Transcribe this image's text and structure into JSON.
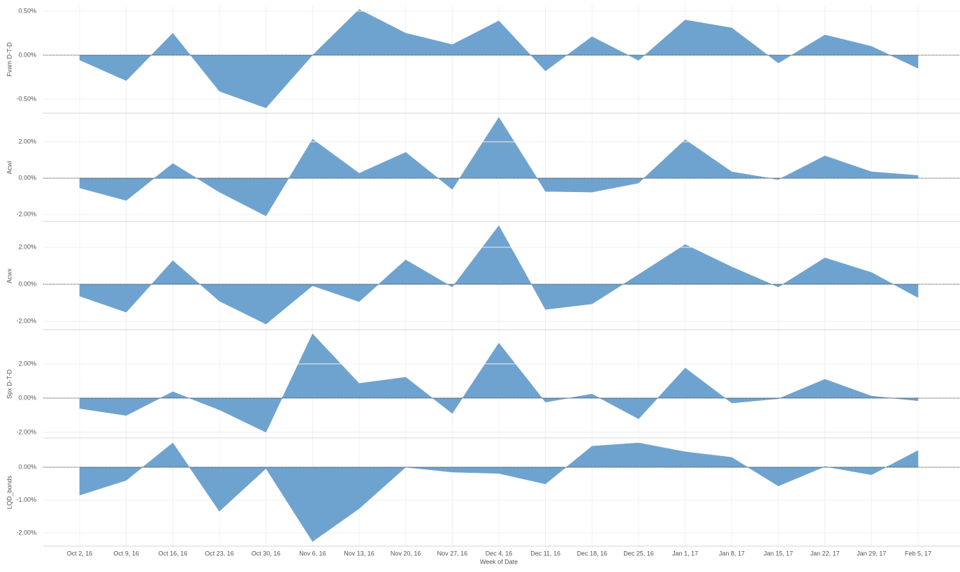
{
  "chart_data": {
    "type": "area",
    "xlabel": "Week of Date",
    "categories": [
      "Oct 2, 16",
      "Oct 9, 16",
      "Oct 16, 16",
      "Oct 23, 16",
      "Oct 30, 16",
      "Nov 6, 16",
      "Nov 13, 16",
      "Nov 20, 16",
      "Nov 27, 16",
      "Dec 4, 16",
      "Dec 11, 16",
      "Dec 18, 16",
      "Dec 25, 16",
      "Jan 1, 17",
      "Jan 8, 17",
      "Jan 15, 17",
      "Jan 22, 17",
      "Jan 29, 17",
      "Feb 5, 17"
    ],
    "color": "#6fa3cf",
    "grid": true,
    "series": [
      {
        "name": "Fvam D-T-D",
        "ylim": [
          -0.659,
          0.563
        ],
        "yticks": [
          {
            "value": -0.5,
            "label": "-0.50%"
          },
          {
            "value": 0,
            "label": "0.00%"
          },
          {
            "value": 0.5,
            "label": "0.50%"
          }
        ],
        "values": [
          -0.056,
          -0.29,
          0.25,
          -0.41,
          -0.6,
          0,
          0.52,
          0.25,
          0.12,
          0.39,
          -0.18,
          0.21,
          -0.06,
          0.4,
          0.31,
          -0.09,
          0.23,
          0.1,
          -0.15
        ]
      },
      {
        "name": "Acwi",
        "ylim": [
          -2.38,
          3.54
        ],
        "yticks": [
          {
            "value": -2,
            "label": "-2.00%"
          },
          {
            "value": 0,
            "label": "0.00%"
          },
          {
            "value": 2,
            "label": "2.00%"
          }
        ],
        "values": [
          -0.54,
          -1.23,
          0.81,
          -0.77,
          -2.08,
          2.15,
          0.27,
          1.42,
          -0.62,
          3.35,
          -0.73,
          -0.77,
          -0.27,
          2.12,
          0.35,
          -0.08,
          1.23,
          0.35,
          0.15
        ]
      },
      {
        "name": "Acwx",
        "ylim": [
          -2.45,
          3.36
        ],
        "yticks": [
          {
            "value": -2,
            "label": "-2.00%"
          },
          {
            "value": 0,
            "label": "0.00%"
          },
          {
            "value": 2,
            "label": "2.00%"
          }
        ],
        "values": [
          -0.64,
          -1.51,
          1.28,
          -0.91,
          -2.15,
          -0.08,
          -0.94,
          1.32,
          -0.15,
          3.17,
          -1.36,
          -1.06,
          0.53,
          2.15,
          0.94,
          -0.15,
          1.43,
          0.64,
          -0.72
        ]
      },
      {
        "name": "Spx D-T-D",
        "ylim": [
          -2.33,
          3.96
        ],
        "yticks": [
          {
            "value": -2,
            "label": "-2.00%"
          },
          {
            "value": 0,
            "label": "0.00%"
          },
          {
            "value": 2,
            "label": "2.00%"
          }
        ],
        "values": [
          -0.61,
          -1.02,
          0.37,
          -0.69,
          -2.0,
          3.76,
          0.86,
          1.22,
          -0.9,
          3.22,
          -0.24,
          0.24,
          -1.22,
          1.76,
          -0.29,
          -0.04,
          1.1,
          0.12,
          -0.16
        ]
      },
      {
        "name": "LQD_bonds",
        "ylim": [
          -2.4,
          0.87
        ],
        "yticks": [
          {
            "value": -2,
            "label": "-2.00%"
          },
          {
            "value": -1,
            "label": "-1.00%"
          },
          {
            "value": 0,
            "label": "0.00%"
          }
        ],
        "values": [
          -0.85,
          -0.4,
          0.74,
          -1.34,
          -0.04,
          -2.26,
          -1.26,
          0,
          -0.15,
          -0.19,
          -0.51,
          0.64,
          0.74,
          0.47,
          0.3,
          -0.57,
          0.02,
          -0.23,
          0.51
        ]
      }
    ]
  }
}
